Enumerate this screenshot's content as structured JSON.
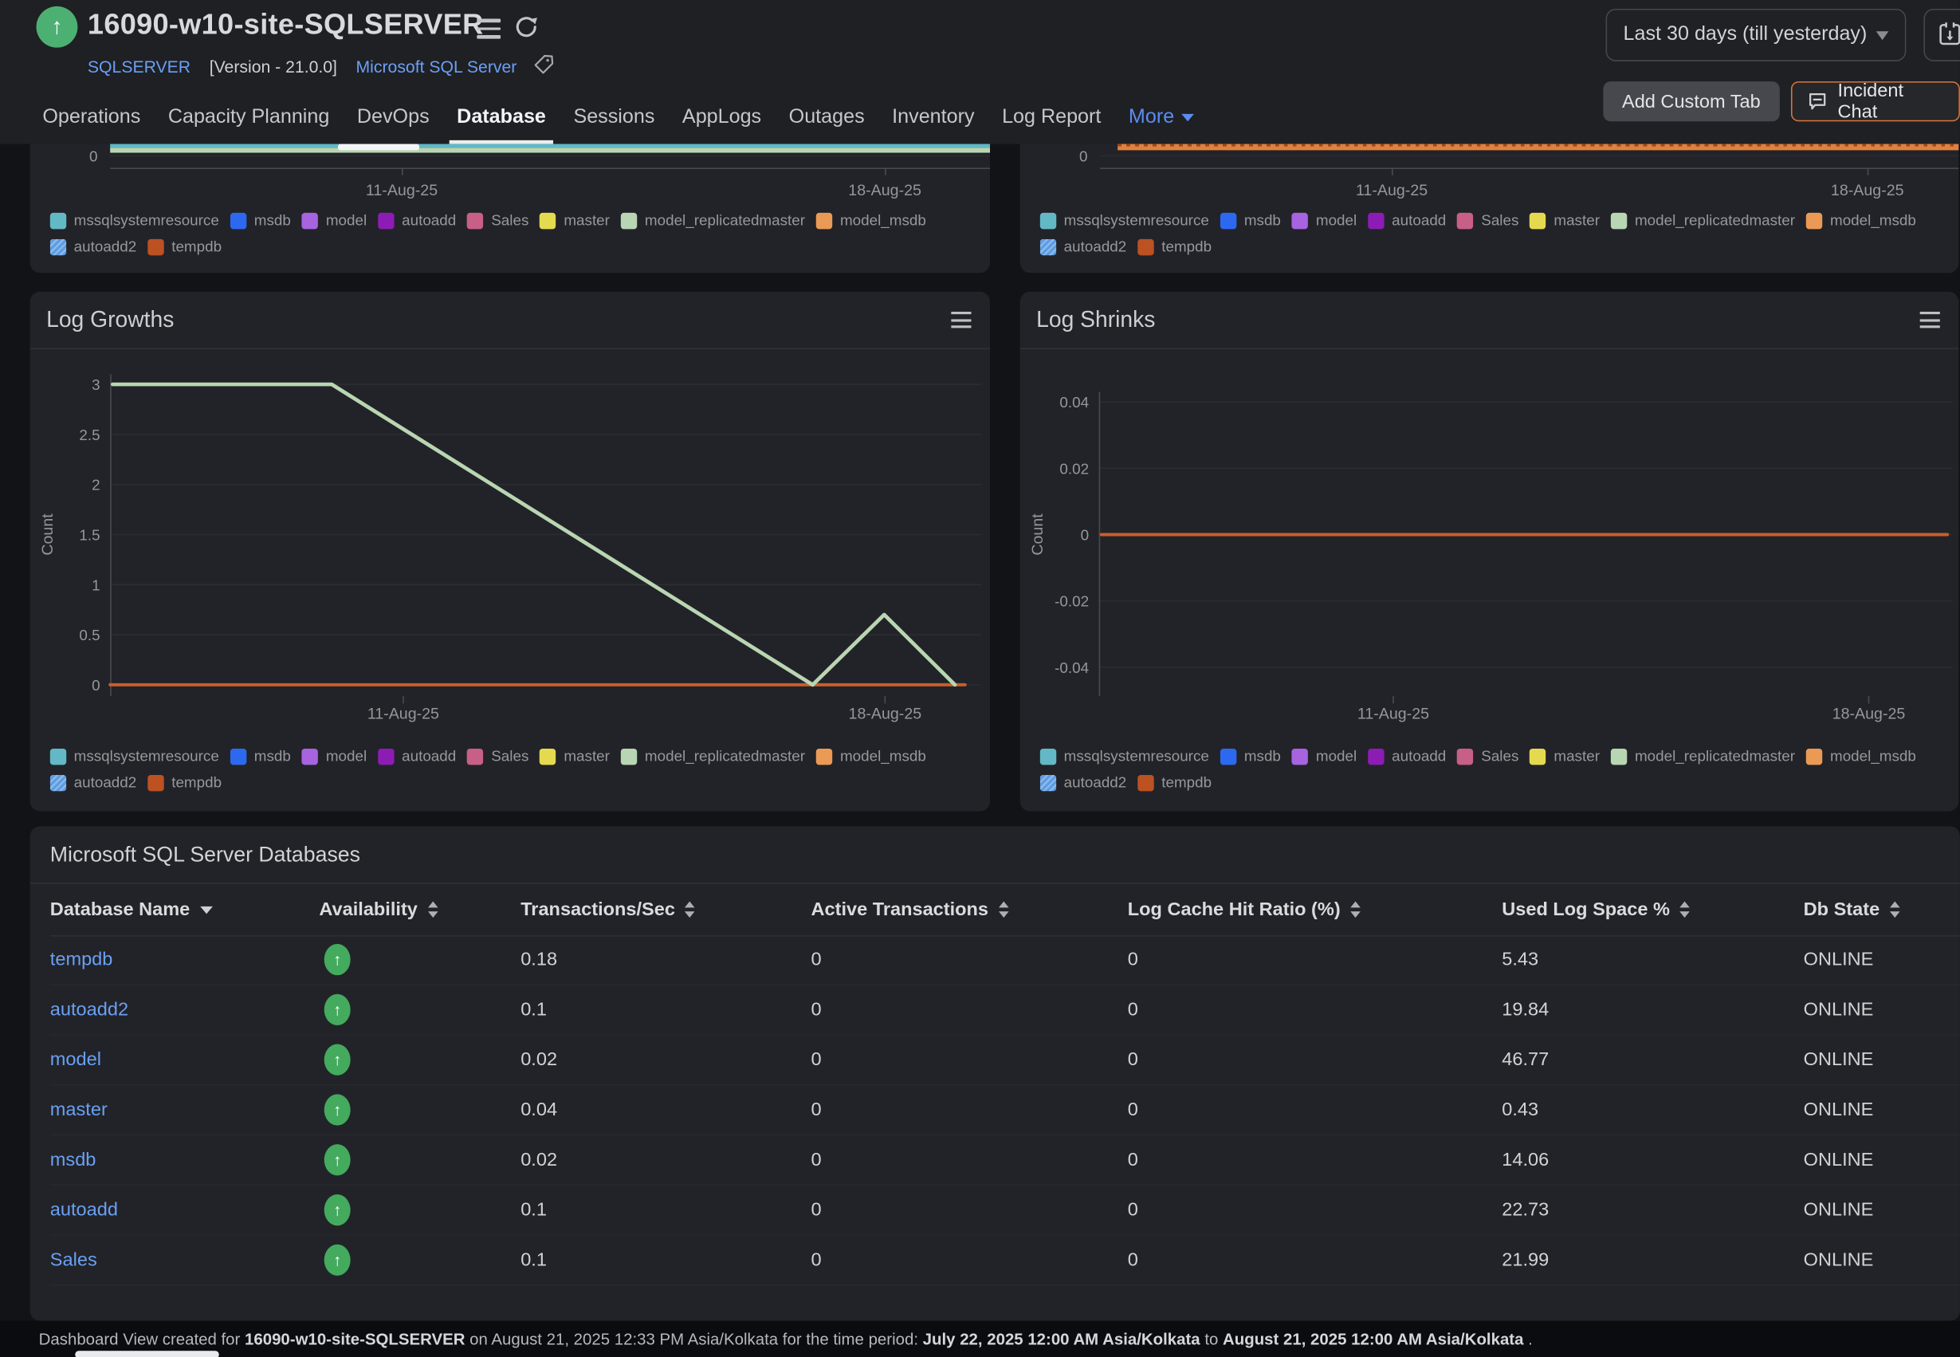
{
  "header": {
    "title": "16090-w10-site-SQLSERVER",
    "monitor_link": "SQLSERVER",
    "version": "[Version - 21.0.0]",
    "type_link": "Microsoft SQL Server",
    "time_range_selector": "Last 30 days (till yesterday)",
    "buttons": {
      "add_custom_tab": "Add Custom Tab",
      "incident_chat": "Incident Chat"
    }
  },
  "nav": {
    "tabs": [
      {
        "label": "Operations"
      },
      {
        "label": "Capacity Planning"
      },
      {
        "label": "DevOps"
      },
      {
        "label": "Database",
        "active": true
      },
      {
        "label": "Sessions"
      },
      {
        "label": "AppLogs"
      },
      {
        "label": "Outages"
      },
      {
        "label": "Inventory"
      },
      {
        "label": "Log Report"
      },
      {
        "label": "More",
        "accent": true,
        "caret": true
      }
    ]
  },
  "legend": {
    "items": [
      {
        "label": "mssqlsystemresource",
        "color": "#63b8c6"
      },
      {
        "label": "msdb",
        "color": "#2d68f0"
      },
      {
        "label": "model",
        "color": "#a763e0"
      },
      {
        "label": "autoadd",
        "color": "#8d1cb4"
      },
      {
        "label": "Sales",
        "color": "#c75f86"
      },
      {
        "label": "master",
        "color": "#e5da4f"
      },
      {
        "label": "model_replicatedmaster",
        "color": "#b9d6b2"
      },
      {
        "label": "model_msdb",
        "color": "#ea9a55"
      },
      {
        "label": "autoadd2",
        "color": "#5c9ce2",
        "hatch": true
      },
      {
        "label": "tempdb",
        "color": "#bc5122"
      }
    ]
  },
  "chart_data": [
    {
      "id": "top_left_partial",
      "type": "line",
      "title": "",
      "yticks_visible": [
        "0"
      ],
      "xticks": [
        "11-Aug-25",
        "18-Aug-25"
      ],
      "visible_series": [
        {
          "name": "mssqlsystemresource",
          "color": "#63b8c6",
          "shape": "flat line just above 0"
        },
        {
          "name": "model_replicatedmaster",
          "color": "#b9d6b2",
          "shape": "flat line just above 0"
        }
      ]
    },
    {
      "id": "top_right_partial",
      "type": "line",
      "title": "",
      "yticks_visible": [
        "0"
      ],
      "xticks": [
        "11-Aug-25",
        "18-Aug-25"
      ],
      "visible_series": [
        {
          "name": "tempdb",
          "color": "#e0813f",
          "shape": "flat line just above 0"
        }
      ]
    },
    {
      "id": "log_growths",
      "type": "line",
      "title": "Log Growths",
      "ylabel": "Count",
      "ylim": [
        0,
        3
      ],
      "yticks": [
        3,
        2.5,
        2,
        1.5,
        1,
        0.5,
        0
      ],
      "xticks": [
        {
          "label": "11-Aug-25",
          "f": 0.345
        },
        {
          "label": "18-Aug-25",
          "f": 0.917
        }
      ],
      "series": [
        {
          "name": "model_replicatedmaster",
          "color": "#b9d6b2",
          "width": 3,
          "points": [
            [
              0,
              3
            ],
            [
              0.26,
              3
            ],
            [
              0.831,
              0
            ],
            [
              0.916,
              0.7
            ],
            [
              1.0,
              0
            ]
          ]
        },
        {
          "name": "tempdb",
          "color": "#c95e2c",
          "width": 2.5,
          "points": [
            [
              -0.003,
              0
            ],
            [
              1.012,
              0
            ]
          ]
        }
      ]
    },
    {
      "id": "log_shrinks",
      "type": "line",
      "title": "Log Shrinks",
      "ylabel": "Count",
      "ylim": [
        -0.05,
        0.05
      ],
      "yticks": [
        0.04,
        0.02,
        0,
        -0.02,
        -0.04
      ],
      "xticks": [
        {
          "label": "11-Aug-25",
          "f": 0.345
        },
        {
          "label": "18-Aug-25",
          "f": 0.907
        }
      ],
      "series": [
        {
          "name": "tempdb",
          "color": "#c95e2c",
          "width": 2.5,
          "points": [
            [
              0,
              0
            ],
            [
              1.0,
              0
            ]
          ]
        }
      ]
    }
  ],
  "table": {
    "title": "Microsoft SQL Server Databases",
    "columns": [
      {
        "label": "Database Name",
        "sort": "active-desc"
      },
      {
        "label": "Availability",
        "sort": "both"
      },
      {
        "label": "Transactions/Sec",
        "sort": "both"
      },
      {
        "label": "Active Transactions",
        "sort": "both"
      },
      {
        "label": "Log Cache Hit Ratio (%)",
        "sort": "both"
      },
      {
        "label": "Used Log Space %",
        "sort": "both"
      },
      {
        "label": "Db State",
        "sort": "both"
      }
    ],
    "rows": [
      {
        "name": "tempdb",
        "availability": "up",
        "tps": "0.18",
        "active_tx": "0",
        "log_cache_hit": "0",
        "used_log_space": "5.43",
        "db_state": "ONLINE"
      },
      {
        "name": "autoadd2",
        "availability": "up",
        "tps": "0.1",
        "active_tx": "0",
        "log_cache_hit": "0",
        "used_log_space": "19.84",
        "db_state": "ONLINE"
      },
      {
        "name": "model",
        "availability": "up",
        "tps": "0.02",
        "active_tx": "0",
        "log_cache_hit": "0",
        "used_log_space": "46.77",
        "db_state": "ONLINE"
      },
      {
        "name": "master",
        "availability": "up",
        "tps": "0.04",
        "active_tx": "0",
        "log_cache_hit": "0",
        "used_log_space": "0.43",
        "db_state": "ONLINE"
      },
      {
        "name": "msdb",
        "availability": "up",
        "tps": "0.02",
        "active_tx": "0",
        "log_cache_hit": "0",
        "used_log_space": "14.06",
        "db_state": "ONLINE"
      },
      {
        "name": "autoadd",
        "availability": "up",
        "tps": "0.1",
        "active_tx": "0",
        "log_cache_hit": "0",
        "used_log_space": "22.73",
        "db_state": "ONLINE"
      },
      {
        "name": "Sales",
        "availability": "up",
        "tps": "0.1",
        "active_tx": "0",
        "log_cache_hit": "0",
        "used_log_space": "21.99",
        "db_state": "ONLINE"
      }
    ]
  },
  "footer": {
    "parts": [
      {
        "text": "Dashboard View created for ",
        "bold": false
      },
      {
        "text": "16090-w10-site-SQLSERVER",
        "bold": true
      },
      {
        "text": " on August 21, 2025 12:33 PM Asia/Kolkata for the time period: ",
        "bold": false
      },
      {
        "text": "July 22, 2025 12:00 AM Asia/Kolkata",
        "bold": true
      },
      {
        "text": " to ",
        "bold": false
      },
      {
        "text": "August 21, 2025 12:00 AM Asia/Kolkata",
        "bold": true
      },
      {
        "text": " .",
        "bold": false
      }
    ]
  },
  "colors": {
    "accent_blue": "#6aa0f4",
    "green_up": "#43aa5e",
    "orange_accent": "#d9753c",
    "card_bg": "#222328",
    "page_bg": "#121317"
  }
}
